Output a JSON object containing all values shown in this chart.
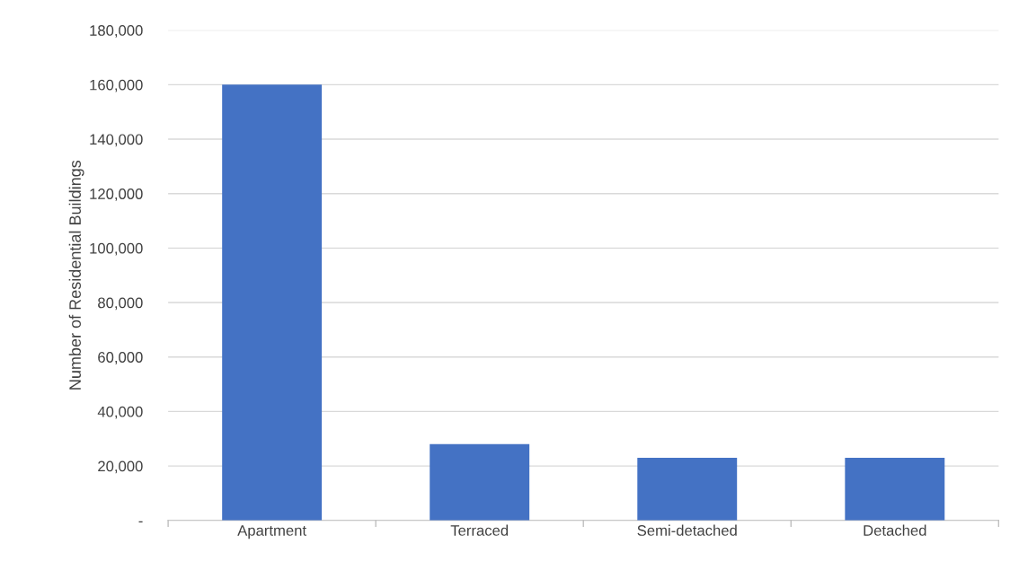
{
  "chart_data": {
    "type": "bar",
    "ylabel": "Number of Residential Buildings",
    "categories": [
      "Apartment",
      "Terraced",
      "Semi-detached",
      "Detached"
    ],
    "values": [
      160000,
      28000,
      23000,
      23000
    ],
    "color": "#4472c4",
    "ylim": [
      0,
      180000
    ],
    "yticks": [
      {
        "value": 0,
        "label": "-"
      },
      {
        "value": 20000,
        "label": "20,000"
      },
      {
        "value": 40000,
        "label": "40,000"
      },
      {
        "value": 60000,
        "label": "60,000"
      },
      {
        "value": 80000,
        "label": "80,000"
      },
      {
        "value": 100000,
        "label": "100,000"
      },
      {
        "value": 120000,
        "label": "120,000"
      },
      {
        "value": 140000,
        "label": "140,000"
      },
      {
        "value": 160000,
        "label": "160,000"
      },
      {
        "value": 180000,
        "label": "180,000"
      }
    ],
    "grid": "y"
  }
}
